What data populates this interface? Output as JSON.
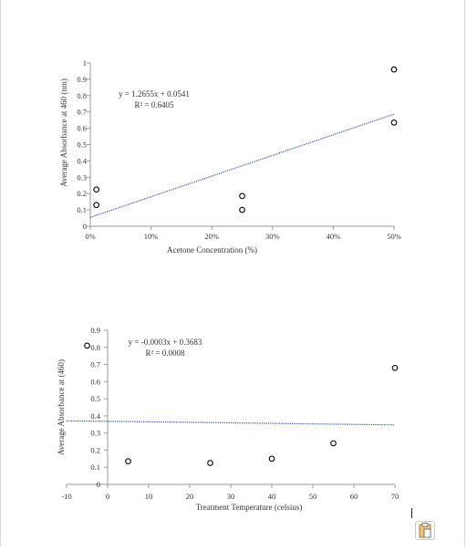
{
  "chart_data": [
    {
      "type": "scatter",
      "title": "",
      "xlabel": "Acetone Concentration (%)",
      "ylabel": "Average Absorbance at 460 (nm)",
      "xlim": [
        0,
        0.5
      ],
      "ylim": [
        0,
        1
      ],
      "xticks": [
        0,
        0.1,
        0.2,
        0.3,
        0.4,
        0.5
      ],
      "xtick_labels": [
        "0%",
        "10%",
        "20%",
        "30%",
        "40%",
        "50%"
      ],
      "yticks": [
        0,
        0.1,
        0.2,
        0.3,
        0.4,
        0.5,
        0.6,
        0.7,
        0.8,
        0.9,
        1
      ],
      "ytick_labels": [
        "0",
        "0.1",
        "0.2",
        "0.3",
        "0.4",
        "0.5",
        "0.6",
        "0.7",
        "0.8",
        "0.9",
        "1"
      ],
      "points": [
        {
          "x": 0.01,
          "y": 0.225
        },
        {
          "x": 0.01,
          "y": 0.13
        },
        {
          "x": 0.25,
          "y": 0.185
        },
        {
          "x": 0.25,
          "y": 0.1
        },
        {
          "x": 0.5,
          "y": 0.96
        },
        {
          "x": 0.5,
          "y": 0.635
        }
      ],
      "trendline": {
        "slope": 1.2655,
        "intercept": 0.0541,
        "x_from": 0,
        "x_to": 0.5
      },
      "equation": "y = 1.2655x + 0.0541",
      "r_squared": "R² = 0.6405",
      "grid": false,
      "legend": "none"
    },
    {
      "type": "scatter",
      "title": "",
      "xlabel": "Treatment Temperature (celsius)",
      "ylabel": "Average Absorbance at (460)",
      "xlim": [
        -10,
        70
      ],
      "ylim": [
        0,
        0.9
      ],
      "xticks": [
        -10,
        0,
        10,
        20,
        30,
        40,
        50,
        60,
        70
      ],
      "xtick_labels": [
        "-10",
        "0",
        "10",
        "20",
        "30",
        "40",
        "50",
        "60",
        "70"
      ],
      "yticks": [
        0,
        0.1,
        0.2,
        0.3,
        0.4,
        0.5,
        0.6,
        0.7,
        0.8,
        0.9
      ],
      "ytick_labels": [
        "0",
        "0.1",
        "0.2",
        "0.3",
        "0.4",
        "0.5",
        "0.6",
        "0.7",
        "0.8",
        "0.9"
      ],
      "points": [
        {
          "x": -5,
          "y": 0.81
        },
        {
          "x": 5,
          "y": 0.135
        },
        {
          "x": 25,
          "y": 0.125
        },
        {
          "x": 40,
          "y": 0.15
        },
        {
          "x": 55,
          "y": 0.24
        },
        {
          "x": 70,
          "y": 0.68
        }
      ],
      "trendline": {
        "slope": -0.0003,
        "intercept": 0.3683,
        "x_from": -10,
        "x_to": 70
      },
      "equation": "y = -0.0003x + 0.3683",
      "r_squared": "R² = 0.0008",
      "grid": false,
      "legend": "none"
    }
  ],
  "ui": {
    "paste_icon": "clipboard-paste-icon",
    "accent_color": "#e8a33d",
    "trendline_color": "#2f4ea8",
    "axis_color": "#9a9a9a"
  }
}
